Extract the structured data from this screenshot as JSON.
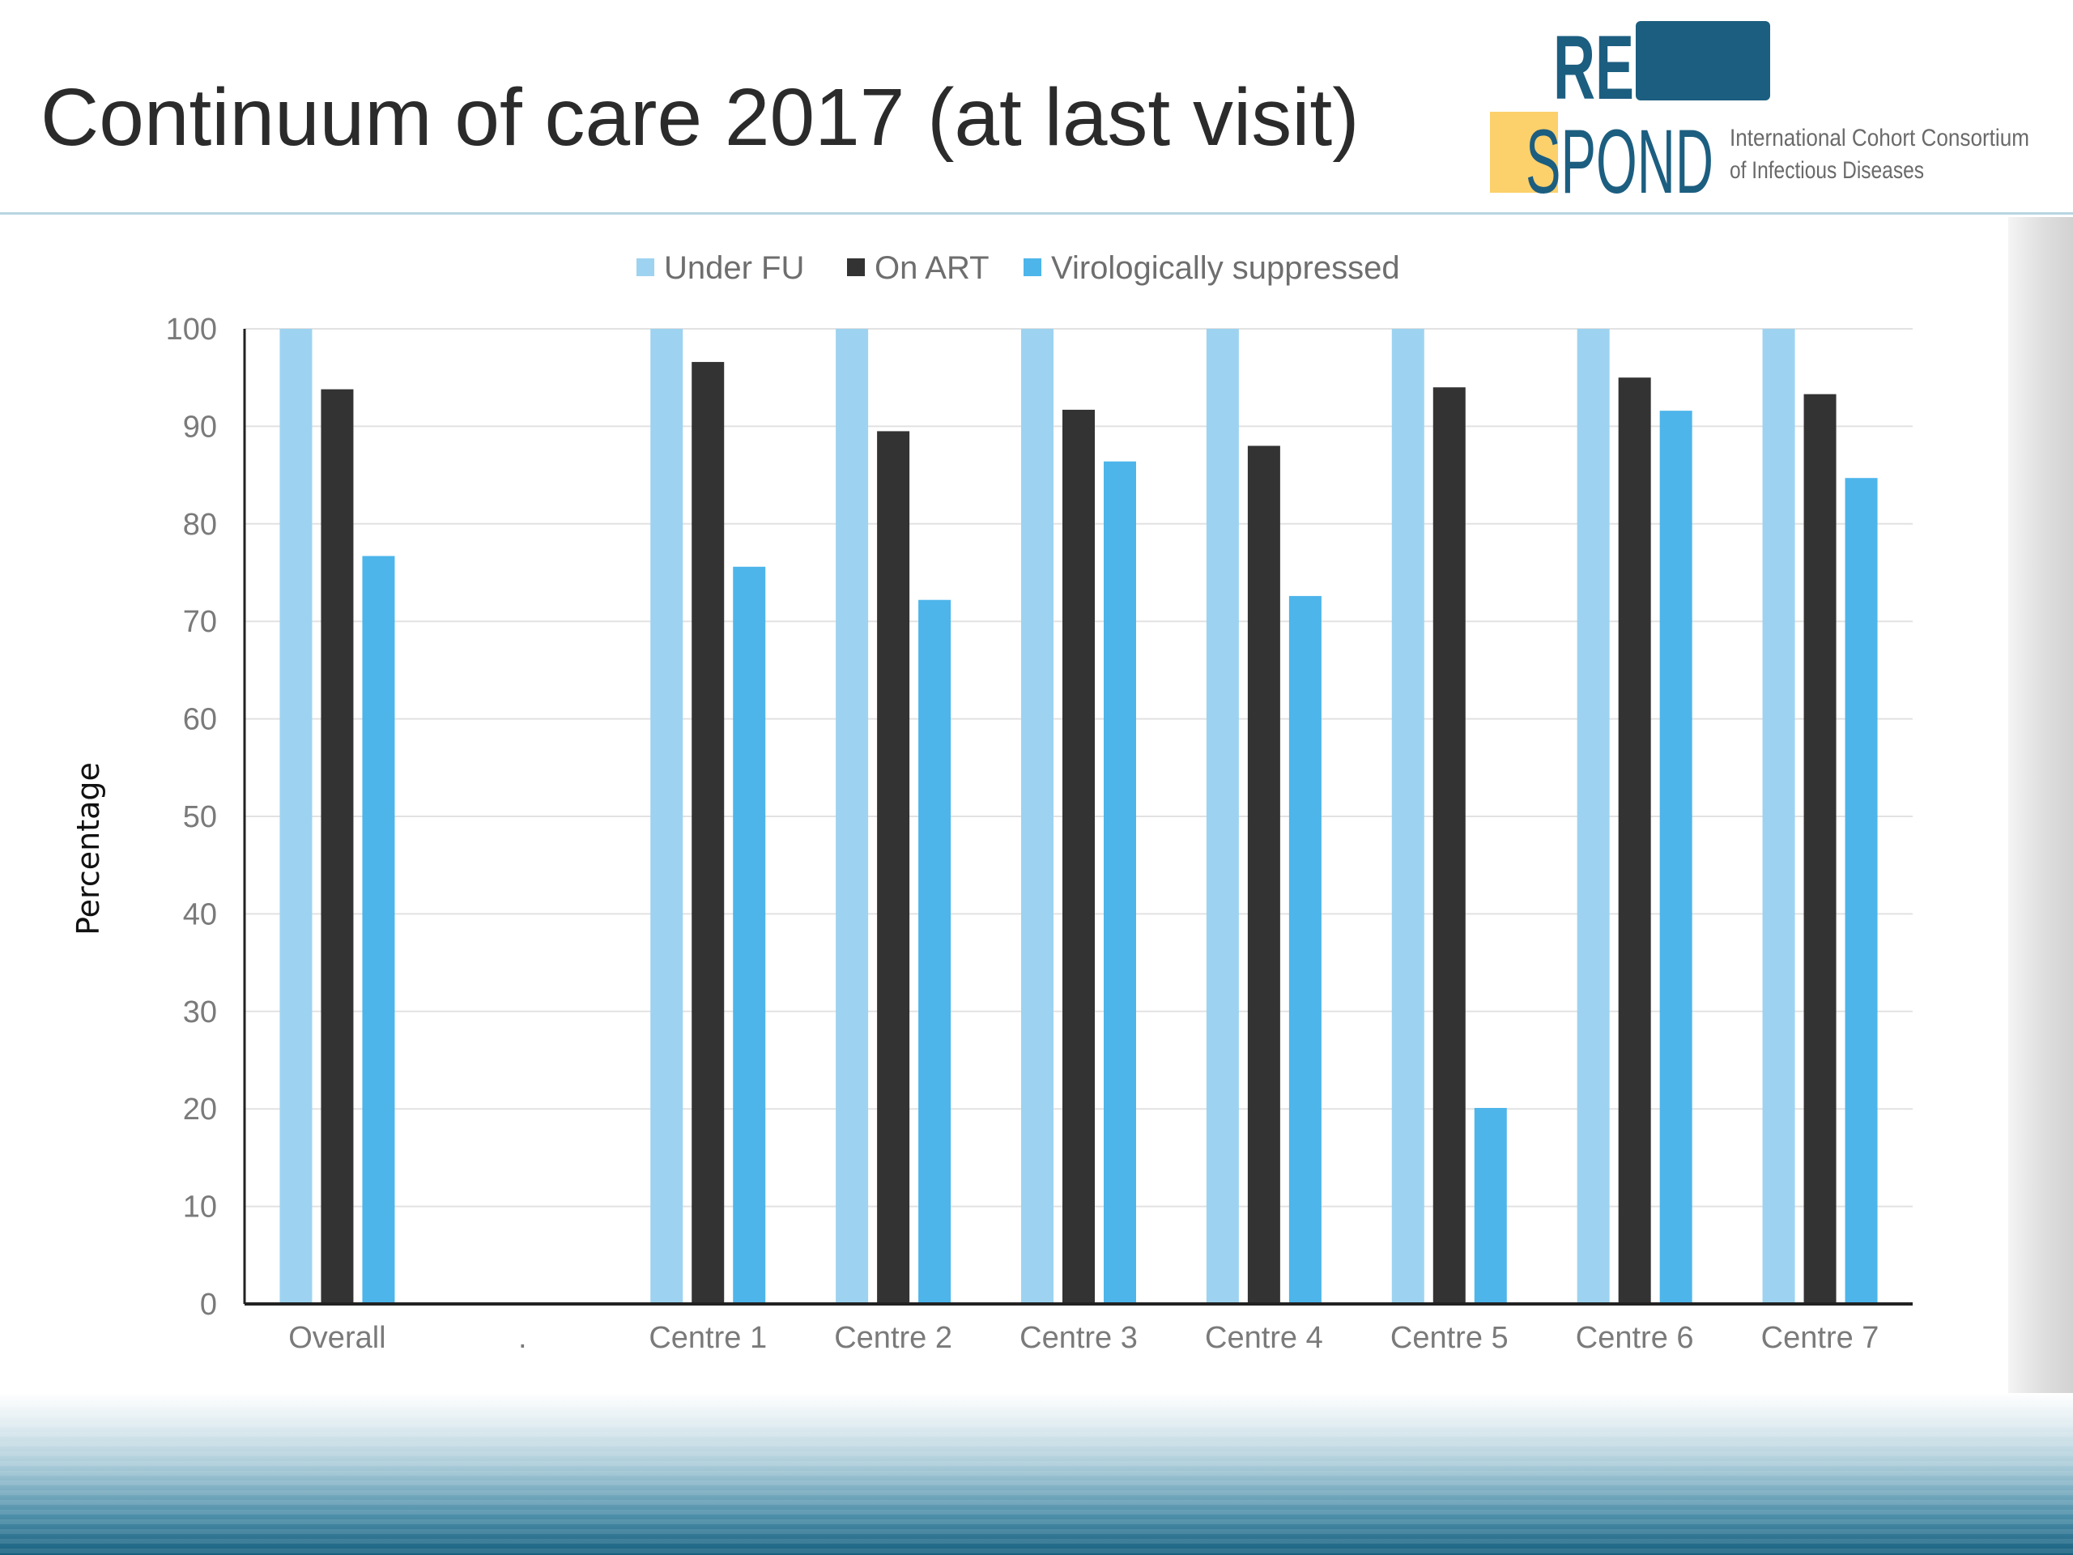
{
  "slide": {
    "title": "Continuum of care 2017 (at last visit)"
  },
  "logo": {
    "line1": "RE",
    "line2": "SPOND",
    "tagline1": "International Cohort Consortium",
    "tagline2": "of Infectious Diseases",
    "colors": {
      "navy": "#1c5e80",
      "yellow": "#fcd06b"
    }
  },
  "chart_data": {
    "type": "bar",
    "categories": [
      "Overall",
      ".",
      "Centre 1",
      "Centre 2",
      "Centre 3",
      "Centre 4",
      "Centre 5",
      "Centre 6",
      "Centre 7"
    ],
    "series": [
      {
        "name": "Under FU",
        "color": "#9dd3f0",
        "values": [
          100,
          null,
          100,
          100,
          100,
          100,
          100,
          100,
          100
        ]
      },
      {
        "name": "On ART",
        "color": "#333333",
        "values": [
          93.8,
          null,
          96.6,
          89.5,
          91.7,
          88,
          94,
          95,
          93.3
        ]
      },
      {
        "name": "Virologically suppressed",
        "color": "#4db5ea",
        "values": [
          76.7,
          null,
          75.6,
          72.2,
          86.4,
          72.6,
          20.1,
          91.6,
          84.7
        ]
      }
    ],
    "xlabel": "",
    "ylabel": "Percentage",
    "ylim": [
      0,
      100
    ],
    "yticks": [
      0,
      10,
      20,
      30,
      40,
      50,
      60,
      70,
      80,
      90,
      100
    ],
    "grid": true,
    "legend": "top-center"
  }
}
